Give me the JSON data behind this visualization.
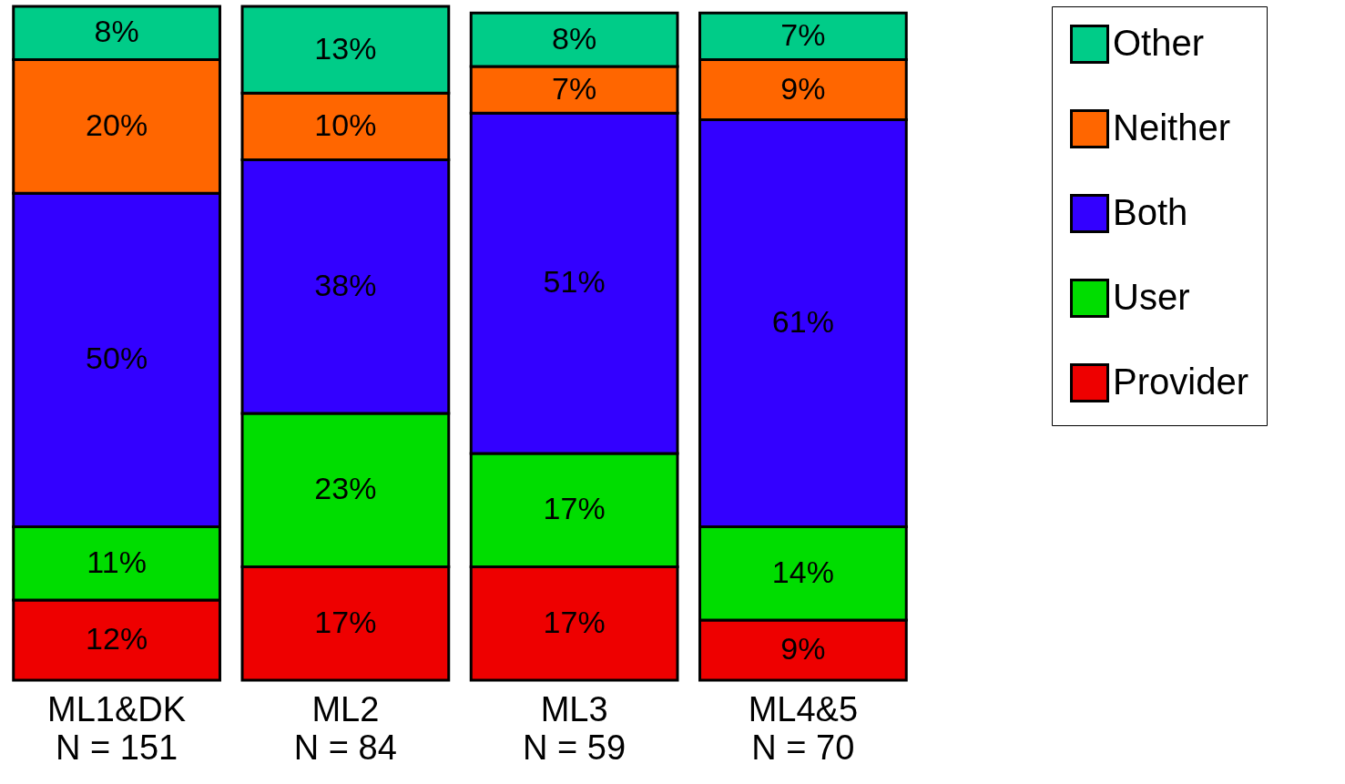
{
  "chart_data": {
    "type": "bar",
    "stacked": true,
    "categories": [
      "ML1&DK\nN = 151",
      "ML2\nN = 84",
      "ML3\nN = 59",
      "ML4&5\nN = 70"
    ],
    "series": [
      {
        "name": "Provider",
        "color": "#ee0000",
        "values": [
          12,
          17,
          17,
          9
        ],
        "value_labels": [
          "12%",
          "17%",
          "17%",
          "9%"
        ]
      },
      {
        "name": "User",
        "color": "#00dd00",
        "values": [
          11,
          23,
          17,
          14
        ],
        "value_labels": [
          "11%",
          "23%",
          "17%",
          "14%"
        ]
      },
      {
        "name": "Both",
        "color": "#3300ff",
        "values": [
          50,
          38,
          51,
          61
        ],
        "value_labels": [
          "50%",
          "38%",
          "51%",
          "61%"
        ]
      },
      {
        "name": "Neither",
        "color": "#ff6600",
        "values": [
          20,
          10,
          7,
          9
        ],
        "value_labels": [
          "20%",
          "10%",
          "7%",
          "9%"
        ]
      },
      {
        "name": "Other",
        "color": "#00cc88",
        "values": [
          8,
          13,
          8,
          7
        ],
        "value_labels": [
          "8%",
          "13%",
          "8%",
          "7%"
        ]
      }
    ],
    "ylim": [
      0,
      101
    ],
    "tick_labels": "x",
    "legend": "right"
  }
}
